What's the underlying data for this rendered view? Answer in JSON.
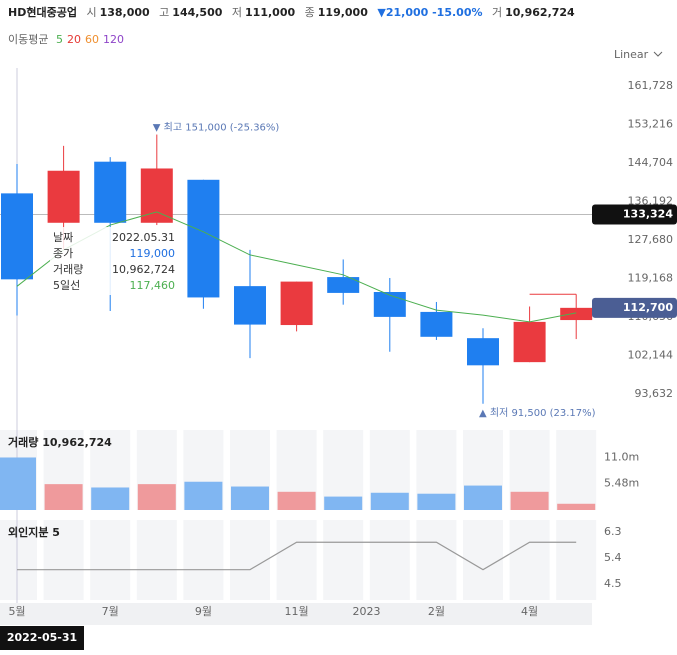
{
  "header": {
    "name": "HD현대중공업",
    "open_label": "시",
    "open": "138,000",
    "high_label": "고",
    "high": "144,500",
    "low_label": "저",
    "low": "111,000",
    "close_label": "종",
    "close": "119,000",
    "change": "▼21,000 -15.00%",
    "volume_label": "거",
    "volume": "10,962,724"
  },
  "scale_mode": "Linear",
  "ma_legend": {
    "label": "이동평균",
    "others": [
      {
        "name": "20",
        "color": "#e53935"
      },
      {
        "name": "60",
        "color": "#ef8f2f"
      },
      {
        "name": "120",
        "color": "#8e44c8"
      }
    ]
  },
  "tooltip": {
    "date_label": "날짜",
    "date": "2022.05.31",
    "close_label": "종가",
    "close": "119,000",
    "volume_label": "거래량",
    "volume": "10,962,724",
    "ma_label": "5일선",
    "ma": "117,460"
  },
  "selected_date": "2022-05-31",
  "chart_data": [
    {
      "type": "candlestick",
      "categories": [
        "5월",
        null,
        "7월",
        null,
        "9월",
        null,
        "11월",
        null,
        "2023",
        "2월",
        null,
        "4월",
        null
      ],
      "open": [
        138000,
        131500,
        145000,
        131500,
        141000,
        117500,
        108900,
        119500,
        116200,
        111800,
        106000,
        100700,
        110000
      ],
      "high": [
        144500,
        148500,
        146000,
        151000,
        141000,
        125500,
        118500,
        123400,
        119300,
        114000,
        108200,
        113000,
        115700
      ],
      "low": [
        111000,
        125500,
        112000,
        131000,
        112500,
        101600,
        107500,
        113400,
        103000,
        105600,
        91500,
        100700,
        105800
      ],
      "close": [
        119000,
        143000,
        131500,
        143500,
        115000,
        109000,
        118500,
        116000,
        110700,
        106300,
        100000,
        109600,
        112700
      ],
      "up_color": "#ea3a3f",
      "down_color": "#1f7ff0",
      "series": [
        {
          "name": "5",
          "color": "#4caf50",
          "values": [
            117460,
            125500,
            131000,
            133900,
            129500,
            124400,
            122200,
            120000,
            115500,
            112200,
            111100,
            109600,
            111600
          ]
        }
      ],
      "ylim": [
        87914,
        165706
      ],
      "yticks": [
        {
          "value": 161728,
          "label": "161,728"
        },
        {
          "value": 153216,
          "label": "153,216"
        },
        {
          "value": 144704,
          "label": "144,704"
        },
        {
          "value": 136192,
          "label": "136,192"
        },
        {
          "value": 127680,
          "label": "127,680"
        },
        {
          "value": 119168,
          "label": "119,168"
        },
        {
          "value": 110656,
          "label": "110,656"
        },
        {
          "value": 102144,
          "label": "102,144"
        },
        {
          "value": 93632,
          "label": "93,632"
        }
      ],
      "crosshair": {
        "value": 133324,
        "label": "133,324"
      },
      "last_price_label": "112,700",
      "annotations": [
        {
          "value": 151000,
          "text": "▼ 최고 151,000 (-25.36%)"
        },
        {
          "value": 91500,
          "text": "▲ 최저 91,500 (23.17%)"
        }
      ]
    },
    {
      "type": "bar",
      "title": "거래량 10,962,724",
      "values": [
        10962724,
        5400000,
        4700000,
        5400000,
        5900000,
        4900000,
        3800000,
        2800000,
        3600000,
        3400000,
        5100000,
        3800000,
        1300000
      ],
      "up_color": "#ef9a9c",
      "down_color": "#80b6f2",
      "ylim": [
        0,
        16700000
      ],
      "yticks": [
        {
          "value": 11000000,
          "label": "11.0m"
        },
        {
          "value": 5480000,
          "label": "5.48m"
        }
      ]
    },
    {
      "type": "line",
      "title": "외인지분 5",
      "color": "#999999",
      "values": [
        5.0,
        5.0,
        5.0,
        5.0,
        5.0,
        5.0,
        5.95,
        5.95,
        5.95,
        5.95,
        5.0,
        5.95,
        5.95
      ],
      "ylim": [
        3.95,
        6.72
      ],
      "yticks": [
        6.3,
        5.4,
        4.5
      ]
    }
  ]
}
